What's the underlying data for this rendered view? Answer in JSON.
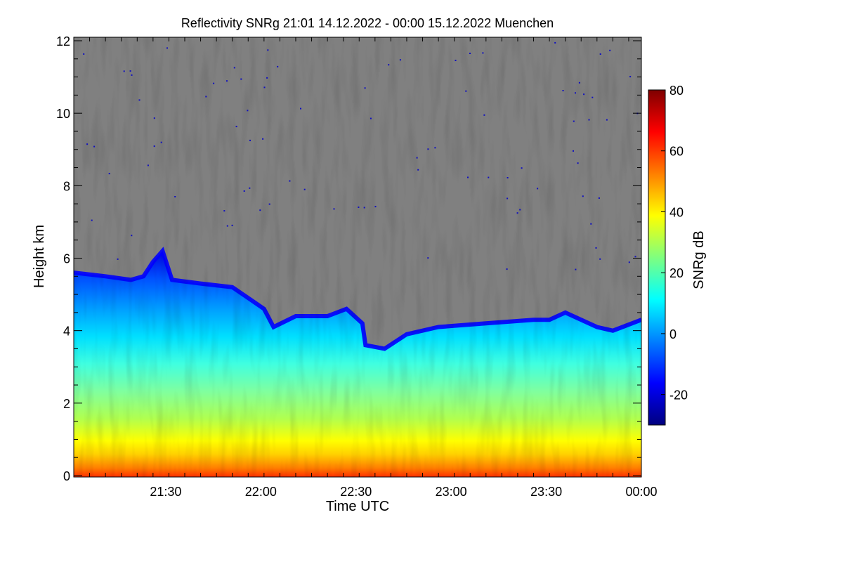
{
  "chart_data": {
    "type": "heatmap",
    "title": "Reflectivity SNRg   21:01 14.12.2022 - 00:00 15.12.2022 Muenchen",
    "xlabel": "Time UTC",
    "ylabel": "Height km",
    "colorbar_label": "SNRg dB",
    "x_range_minutes": [
      0,
      179
    ],
    "x_ticks": [
      {
        "label": "21:30",
        "minutes": 29
      },
      {
        "label": "22:00",
        "minutes": 59
      },
      {
        "label": "22:30",
        "minutes": 89
      },
      {
        "label": "23:00",
        "minutes": 119
      },
      {
        "label": "23:30",
        "minutes": 149
      },
      {
        "label": "00:00",
        "minutes": 179
      }
    ],
    "y_range_km": [
      0,
      12
    ],
    "y_ticks": [
      "0",
      "2",
      "4",
      "6",
      "8",
      "10",
      "12"
    ],
    "colorbar_range_db": [
      -30,
      80
    ],
    "colorbar_ticks": [
      "-20",
      "0",
      "20",
      "40",
      "60",
      "80"
    ],
    "no_signal_color": "#808080",
    "colormap": [
      "#00007f",
      "#0000ff",
      "#007fff",
      "#00ffff",
      "#7fff7f",
      "#ffff00",
      "#ff7f00",
      "#ff0000",
      "#7f0000"
    ],
    "cloud_top_km": [
      {
        "minutes": 0,
        "km": 5.6
      },
      {
        "minutes": 10,
        "km": 5.5
      },
      {
        "minutes": 18,
        "km": 5.4
      },
      {
        "minutes": 22,
        "km": 5.5
      },
      {
        "minutes": 25,
        "km": 5.9
      },
      {
        "minutes": 28,
        "km": 6.2
      },
      {
        "minutes": 31,
        "km": 5.4
      },
      {
        "minutes": 40,
        "km": 5.3
      },
      {
        "minutes": 50,
        "km": 5.2
      },
      {
        "minutes": 55,
        "km": 4.9
      },
      {
        "minutes": 60,
        "km": 4.6
      },
      {
        "minutes": 63,
        "km": 4.1
      },
      {
        "minutes": 70,
        "km": 4.4
      },
      {
        "minutes": 80,
        "km": 4.4
      },
      {
        "minutes": 86,
        "km": 4.6
      },
      {
        "minutes": 91,
        "km": 4.2
      },
      {
        "minutes": 92,
        "km": 3.6
      },
      {
        "minutes": 98,
        "km": 3.5
      },
      {
        "minutes": 105,
        "km": 3.9
      },
      {
        "minutes": 115,
        "km": 4.1
      },
      {
        "minutes": 130,
        "km": 4.2
      },
      {
        "minutes": 145,
        "km": 4.3
      },
      {
        "minutes": 150,
        "km": 4.3
      },
      {
        "minutes": 155,
        "km": 4.5
      },
      {
        "minutes": 165,
        "km": 4.1
      },
      {
        "minutes": 170,
        "km": 4.0
      },
      {
        "minutes": 179,
        "km": 4.3
      }
    ]
  }
}
